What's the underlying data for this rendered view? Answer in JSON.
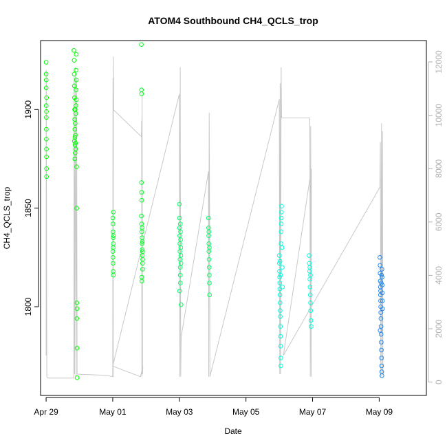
{
  "chart_data": {
    "type": "scatter",
    "title": "ATOM4 Southbound CH4_QCLS_trop",
    "xlabel": "Date",
    "ylabel": "CH4_QCLS_trop",
    "xlim": [
      "2018-04-28 20:00",
      "2018-05-10 10:00"
    ],
    "ylim": [
      1755,
      1935
    ],
    "y2lim": [
      -500,
      12800
    ],
    "x_ticks": [
      {
        "date": "2018-04-29",
        "label": "Apr 29"
      },
      {
        "date": "2018-05-01",
        "label": "May 01"
      },
      {
        "date": "2018-05-03",
        "label": "May 03"
      },
      {
        "date": "2018-05-05",
        "label": "May 05"
      },
      {
        "date": "2018-05-07",
        "label": "May 07"
      },
      {
        "date": "2018-05-09",
        "label": "May 09"
      }
    ],
    "y_ticks": [
      1800,
      1850,
      1900
    ],
    "y2_ticks": [
      0,
      2000,
      4000,
      6000,
      8000,
      10000,
      12000
    ],
    "grid": false,
    "legend": "none",
    "colors": {
      "secondary_axis": "#b0b0b0",
      "altitude_trace": "#c8c8c8"
    },
    "series": [
      {
        "color": "#00ff00",
        "points": [
          [
            "2018-04-29 00:00",
            1924
          ],
          [
            "2018-04-29 00:00",
            1918
          ],
          [
            "2018-04-29 00:05",
            1911
          ],
          [
            "2018-04-29 00:05",
            1902
          ],
          [
            "2018-04-29 00:10",
            1896
          ],
          [
            "2018-04-29 00:10",
            1890
          ],
          [
            "2018-04-29 00:10",
            1885
          ],
          [
            "2018-04-29 00:15",
            1880
          ],
          [
            "2018-04-29 00:15",
            1876
          ],
          [
            "2018-04-29 00:20",
            1870
          ],
          [
            "2018-04-29 00:20",
            1866
          ],
          [
            "2018-04-29 00:20",
            1906
          ],
          [
            "2018-04-29 00:15",
            1899
          ],
          [
            "2018-04-29 00:05",
            1915
          ],
          [
            "2018-04-29 20:00",
            1930
          ],
          [
            "2018-04-29 20:10",
            1925
          ],
          [
            "2018-04-29 20:15",
            1918
          ],
          [
            "2018-04-29 20:20",
            1912
          ],
          [
            "2018-04-29 20:25",
            1906
          ],
          [
            "2018-04-29 20:30",
            1900
          ],
          [
            "2018-04-29 20:35",
            1895
          ],
          [
            "2018-04-29 20:40",
            1890
          ],
          [
            "2018-04-29 20:45",
            1886
          ],
          [
            "2018-04-29 20:50",
            1882
          ],
          [
            "2018-04-29 20:55",
            1878
          ],
          [
            "2018-04-29 21:00",
            1893
          ],
          [
            "2018-04-29 21:05",
            1887
          ],
          [
            "2018-04-29 21:10",
            1883
          ],
          [
            "2018-04-29 21:15",
            1880
          ],
          [
            "2018-04-29 21:20",
            1898
          ],
          [
            "2018-04-29 21:25",
            1902
          ],
          [
            "2018-04-29 21:30",
            1910
          ],
          [
            "2018-04-29 21:35",
            1920
          ],
          [
            "2018-04-29 21:40",
            1928
          ],
          [
            "2018-04-29 21:45",
            1915
          ],
          [
            "2018-04-29 21:50",
            1905
          ],
          [
            "2018-04-29 22:00",
            1871
          ],
          [
            "2018-04-29 22:05",
            1850
          ],
          [
            "2018-04-29 22:10",
            1802
          ],
          [
            "2018-04-29 22:15",
            1799
          ],
          [
            "2018-04-29 22:10",
            1794
          ],
          [
            "2018-04-29 22:15",
            1779
          ],
          [
            "2018-04-29 22:20",
            1764
          ],
          [
            "2018-04-29 20:40",
            1875
          ],
          [
            "2018-04-29 21:00",
            1900
          ],
          [
            "2018-04-29 20:20",
            1884
          ]
        ]
      },
      {
        "color": "#00ff22",
        "points": [
          [
            "2018-05-01 00:05",
            1845
          ],
          [
            "2018-05-01 00:10",
            1842
          ],
          [
            "2018-05-01 00:15",
            1838
          ],
          [
            "2018-05-01 00:20",
            1835
          ],
          [
            "2018-05-01 00:25",
            1832
          ],
          [
            "2018-05-01 00:05",
            1828
          ],
          [
            "2018-05-01 00:10",
            1825
          ],
          [
            "2018-05-01 00:15",
            1822
          ],
          [
            "2018-05-01 00:20",
            1818
          ],
          [
            "2018-05-01 00:25",
            1816
          ],
          [
            "2018-05-01 00:30",
            1848
          ],
          [
            "2018-05-01 00:20",
            1830
          ],
          [
            "2018-05-01 00:30",
            1836
          ],
          [
            "2018-05-01 20:40",
            1933
          ],
          [
            "2018-05-01 20:45",
            1910
          ],
          [
            "2018-05-01 20:50",
            1908
          ],
          [
            "2018-05-01 20:45",
            1863
          ],
          [
            "2018-05-01 20:50",
            1858
          ],
          [
            "2018-05-01 20:55",
            1854
          ],
          [
            "2018-05-01 20:40",
            1846
          ],
          [
            "2018-05-01 20:50",
            1842
          ],
          [
            "2018-05-01 21:00",
            1838
          ],
          [
            "2018-05-01 21:05",
            1835
          ],
          [
            "2018-05-01 21:10",
            1832
          ],
          [
            "2018-05-01 21:15",
            1829
          ],
          [
            "2018-05-01 21:20",
            1826
          ],
          [
            "2018-05-01 21:25",
            1822
          ],
          [
            "2018-05-01 21:30",
            1819
          ],
          [
            "2018-05-01 20:55",
            1815
          ],
          [
            "2018-05-01 21:00",
            1813
          ],
          [
            "2018-05-01 21:10",
            1840
          ],
          [
            "2018-05-01 21:20",
            1833
          ],
          [
            "2018-05-01 21:30",
            1828
          ],
          [
            "2018-05-01 21:35",
            1824
          ]
        ]
      },
      {
        "color": "#00ff66",
        "points": [
          [
            "2018-05-03 00:00",
            1852
          ],
          [
            "2018-05-03 00:05",
            1845
          ],
          [
            "2018-05-03 00:10",
            1840
          ],
          [
            "2018-05-03 00:15",
            1836
          ],
          [
            "2018-05-03 00:20",
            1832
          ],
          [
            "2018-05-03 00:25",
            1828
          ],
          [
            "2018-05-03 00:30",
            1824
          ],
          [
            "2018-05-03 00:35",
            1820
          ],
          [
            "2018-05-03 00:40",
            1816
          ],
          [
            "2018-05-03 00:45",
            1812
          ],
          [
            "2018-05-03 00:50",
            1838
          ],
          [
            "2018-05-03 00:55",
            1834
          ],
          [
            "2018-05-03 01:00",
            1830
          ],
          [
            "2018-05-03 01:05",
            1826
          ],
          [
            "2018-05-03 01:10",
            1822
          ],
          [
            "2018-05-03 01:15",
            1801
          ],
          [
            "2018-05-03 00:10",
            1808
          ],
          [
            "2018-05-03 00:40",
            1842
          ],
          [
            "2018-05-03 21:00",
            1845
          ],
          [
            "2018-05-03 21:05",
            1840
          ],
          [
            "2018-05-03 21:10",
            1836
          ],
          [
            "2018-05-03 21:15",
            1832
          ],
          [
            "2018-05-03 21:20",
            1828
          ],
          [
            "2018-05-03 21:25",
            1824
          ],
          [
            "2018-05-03 21:30",
            1820
          ],
          [
            "2018-05-03 21:35",
            1816
          ],
          [
            "2018-05-03 21:40",
            1812
          ],
          [
            "2018-05-03 21:45",
            1806
          ],
          [
            "2018-05-03 21:20",
            1838
          ],
          [
            "2018-05-03 21:35",
            1830
          ]
        ]
      },
      {
        "color": "#00ffdd",
        "points": [
          [
            "2018-05-06 00:00",
            1826
          ],
          [
            "2018-05-06 00:05",
            1822
          ],
          [
            "2018-05-06 00:10",
            1818
          ],
          [
            "2018-05-06 00:15",
            1815
          ],
          [
            "2018-05-06 00:20",
            1812
          ],
          [
            "2018-05-06 00:25",
            1809
          ],
          [
            "2018-05-06 00:30",
            1806
          ],
          [
            "2018-05-06 00:35",
            1802
          ],
          [
            "2018-05-06 00:40",
            1798
          ],
          [
            "2018-05-06 00:45",
            1795
          ],
          [
            "2018-05-06 00:50",
            1790
          ],
          [
            "2018-05-06 00:55",
            1785
          ],
          [
            "2018-05-06 01:00",
            1780
          ],
          [
            "2018-05-06 01:05",
            1774
          ],
          [
            "2018-05-06 01:10",
            1770
          ],
          [
            "2018-05-06 01:15",
            1832
          ],
          [
            "2018-05-06 01:20",
            1838
          ],
          [
            "2018-05-06 01:25",
            1842
          ],
          [
            "2018-05-06 01:30",
            1845
          ],
          [
            "2018-05-06 01:35",
            1848
          ],
          [
            "2018-05-06 01:40",
            1851
          ],
          [
            "2018-05-06 02:00",
            1830
          ],
          [
            "2018-05-06 02:10",
            1820
          ],
          [
            "2018-05-06 02:20",
            1810
          ],
          [
            "2018-05-06 00:30",
            1823
          ],
          [
            "2018-05-06 01:00",
            1816
          ],
          [
            "2018-05-06 21:30",
            1826
          ],
          [
            "2018-05-06 21:40",
            1822
          ],
          [
            "2018-05-06 21:50",
            1818
          ],
          [
            "2018-05-06 22:00",
            1814
          ],
          [
            "2018-05-06 22:10",
            1810
          ],
          [
            "2018-05-06 22:20",
            1806
          ],
          [
            "2018-05-06 22:30",
            1802
          ],
          [
            "2018-05-06 22:40",
            1798
          ],
          [
            "2018-05-06 22:50",
            1793
          ],
          [
            "2018-05-06 23:00",
            1790
          ],
          [
            "2018-05-06 22:00",
            1820
          ],
          [
            "2018-05-06 22:30",
            1816
          ]
        ]
      },
      {
        "color": "#2288ee",
        "points": [
          [
            "2018-05-09 00:30",
            1825
          ],
          [
            "2018-05-09 00:35",
            1821
          ],
          [
            "2018-05-09 00:40",
            1817
          ],
          [
            "2018-05-09 00:45",
            1813
          ],
          [
            "2018-05-09 00:50",
            1810
          ],
          [
            "2018-05-09 00:55",
            1806
          ],
          [
            "2018-05-09 01:00",
            1803
          ],
          [
            "2018-05-09 01:05",
            1800
          ],
          [
            "2018-05-09 01:10",
            1797
          ],
          [
            "2018-05-09 01:15",
            1794
          ],
          [
            "2018-05-09 01:20",
            1790
          ],
          [
            "2018-05-09 01:25",
            1786
          ],
          [
            "2018-05-09 01:30",
            1782
          ],
          [
            "2018-05-09 01:35",
            1778
          ],
          [
            "2018-05-09 01:40",
            1774
          ],
          [
            "2018-05-09 01:45",
            1770
          ],
          [
            "2018-05-09 01:50",
            1767
          ],
          [
            "2018-05-09 01:55",
            1765
          ],
          [
            "2018-05-09 02:00",
            1819
          ],
          [
            "2018-05-09 02:05",
            1815
          ],
          [
            "2018-05-09 02:10",
            1811
          ],
          [
            "2018-05-09 02:15",
            1807
          ],
          [
            "2018-05-09 02:20",
            1803
          ],
          [
            "2018-05-09 02:25",
            1799
          ],
          [
            "2018-05-09 01:00",
            1808
          ],
          [
            "2018-05-09 01:30",
            1812
          ],
          [
            "2018-05-09 01:45",
            1816
          ],
          [
            "2018-05-09 00:40",
            1788
          ]
        ]
      }
    ],
    "altitude_trace": [
      [
        "2018-04-29 00:00",
        1000
      ],
      [
        "2018-04-29 00:05",
        11700
      ],
      [
        "2018-04-29 00:30",
        200
      ],
      [
        "2018-04-29 01:00",
        150
      ],
      [
        "2018-04-29 20:00",
        150
      ],
      [
        "2018-04-29 20:10",
        11500
      ],
      [
        "2018-04-29 20:30",
        300
      ],
      [
        "2018-04-29 21:00",
        11800
      ],
      [
        "2018-04-29 21:30",
        200
      ],
      [
        "2018-04-29 22:00",
        11400
      ],
      [
        "2018-04-29 22:20",
        300
      ],
      [
        "2018-04-30 20:00",
        250
      ],
      [
        "2018-05-01 00:00",
        200
      ],
      [
        "2018-05-01 00:10",
        11400
      ],
      [
        "2018-05-01 00:20",
        200
      ],
      [
        "2018-05-01 00:30",
        12200
      ],
      [
        "2018-05-01 00:40",
        10200
      ],
      [
        "2018-05-01 20:40",
        9200
      ],
      [
        "2018-05-01 20:50",
        9800
      ],
      [
        "2018-05-01 21:00",
        200
      ],
      [
        "2018-05-01 21:10",
        11000
      ],
      [
        "2018-05-01 21:30",
        300
      ],
      [
        "2018-05-01 21:40",
        600
      ],
      [
        "2018-05-01 20:00",
        200
      ],
      [
        "2018-05-01 00:00",
        600
      ],
      [
        "2018-05-03 00:00",
        10800
      ],
      [
        "2018-05-03 00:20",
        200
      ],
      [
        "2018-05-03 00:40",
        11800
      ],
      [
        "2018-05-03 01:00",
        200
      ],
      [
        "2018-05-03 01:20",
        1700
      ],
      [
        "2018-05-03 21:00",
        7900
      ],
      [
        "2018-05-03 21:10",
        200
      ],
      [
        "2018-05-03 21:30",
        10100
      ],
      [
        "2018-05-03 21:50",
        5800
      ],
      [
        "2018-05-03 22:00",
        200
      ],
      [
        "2018-05-06 00:00",
        10600
      ],
      [
        "2018-05-06 00:20",
        300
      ],
      [
        "2018-05-06 00:40",
        11200
      ],
      [
        "2018-05-06 01:00",
        300
      ],
      [
        "2018-05-06 01:20",
        11800
      ],
      [
        "2018-05-06 01:40",
        9900
      ],
      [
        "2018-05-06 22:00",
        9900
      ],
      [
        "2018-05-06 22:20",
        200
      ],
      [
        "2018-05-06 22:40",
        9600
      ],
      [
        "2018-05-06 23:00",
        200
      ],
      [
        "2018-05-06 23:10",
        8000
      ],
      [
        "2018-05-06 03:00",
        1000
      ],
      [
        "2018-05-09 00:30",
        7300
      ],
      [
        "2018-05-09 00:50",
        9000
      ],
      [
        "2018-05-09 01:10",
        200
      ],
      [
        "2018-05-09 01:40",
        9700
      ],
      [
        "2018-05-09 02:00",
        200
      ],
      [
        "2018-05-09 02:20",
        9400
      ],
      [
        "2018-05-09 02:40",
        300
      ]
    ]
  }
}
